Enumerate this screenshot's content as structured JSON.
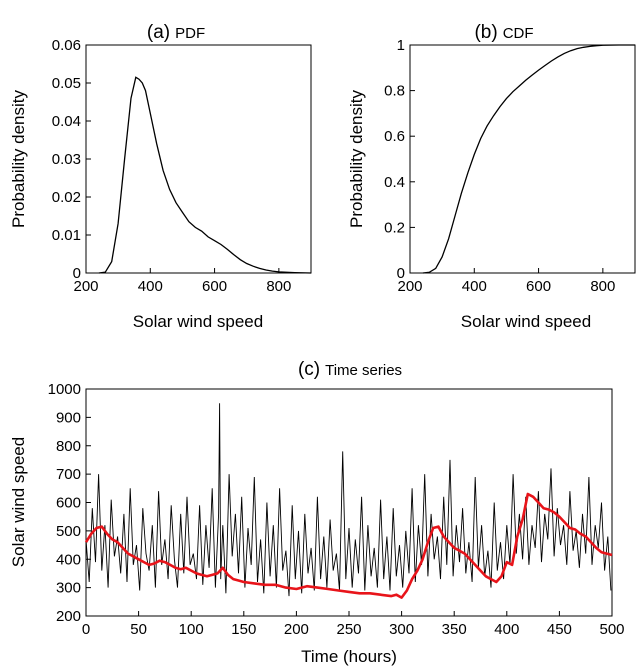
{
  "chart_data": [
    {
      "type": "line",
      "panel": "(a)",
      "title": "PDF",
      "xlabel": "Solar wind speed",
      "ylabel": "Probability density",
      "xlim": [
        200,
        900
      ],
      "ylim": [
        0,
        0.06
      ],
      "xticks": [
        "200",
        "400",
        "600",
        "800"
      ],
      "yticks": [
        "0",
        "0.01",
        "0.02",
        "0.03",
        "0.04",
        "0.05",
        "0.06"
      ],
      "grid": false,
      "series": [
        {
          "x": [
            240,
            260,
            280,
            300,
            320,
            340,
            355,
            365,
            375,
            385,
            400,
            420,
            440,
            460,
            480,
            500,
            520,
            540,
            560,
            580,
            600,
            620,
            640,
            660,
            680,
            700,
            720,
            740,
            760,
            780,
            800,
            850,
            900
          ],
          "y": [
            0,
            0.0002,
            0.003,
            0.013,
            0.03,
            0.046,
            0.0515,
            0.051,
            0.05,
            0.048,
            0.042,
            0.034,
            0.027,
            0.022,
            0.0185,
            0.016,
            0.0135,
            0.012,
            0.011,
            0.0095,
            0.0085,
            0.0075,
            0.0062,
            0.0048,
            0.0035,
            0.0025,
            0.0018,
            0.0012,
            0.0008,
            0.0005,
            0.0003,
            0.0001,
            0
          ]
        }
      ]
    },
    {
      "type": "line",
      "panel": "(b)",
      "title": "CDF",
      "xlabel": "Solar wind speed",
      "ylabel": "Probability density",
      "xlim": [
        200,
        900
      ],
      "ylim": [
        0,
        1
      ],
      "xticks": [
        "200",
        "400",
        "600",
        "800"
      ],
      "yticks": [
        "0",
        "0.2",
        "0.4",
        "0.6",
        "0.8",
        "1"
      ],
      "grid": false,
      "series": [
        {
          "x": [
            240,
            260,
            280,
            300,
            320,
            340,
            360,
            380,
            400,
            420,
            440,
            460,
            480,
            500,
            520,
            540,
            560,
            580,
            600,
            620,
            640,
            660,
            680,
            700,
            720,
            740,
            760,
            780,
            800,
            850,
            900
          ],
          "y": [
            0,
            0.003,
            0.02,
            0.07,
            0.15,
            0.25,
            0.35,
            0.44,
            0.52,
            0.59,
            0.645,
            0.69,
            0.73,
            0.765,
            0.795,
            0.82,
            0.845,
            0.868,
            0.89,
            0.91,
            0.93,
            0.948,
            0.963,
            0.975,
            0.984,
            0.99,
            0.994,
            0.997,
            0.999,
            1.0,
            1.0
          ]
        }
      ]
    },
    {
      "type": "line",
      "panel": "(c)",
      "title": "Time series",
      "xlabel": "Time (hours)",
      "ylabel": "Solar wind speed",
      "xlim": [
        0,
        500
      ],
      "ylim": [
        200,
        1000
      ],
      "xticks": [
        "0",
        "50",
        "100",
        "150",
        "200",
        "250",
        "300",
        "350",
        "400",
        "450",
        "500"
      ],
      "yticks": [
        "200",
        "300",
        "400",
        "500",
        "600",
        "700",
        "800",
        "900",
        "1000"
      ],
      "grid": false,
      "series": [
        {
          "color": "#000000",
          "x": [
            0,
            3,
            6,
            9,
            12,
            15,
            18,
            21,
            24,
            27,
            30,
            33,
            36,
            39,
            42,
            45,
            48,
            51,
            54,
            57,
            60,
            63,
            66,
            69,
            72,
            75,
            78,
            81,
            84,
            87,
            90,
            93,
            96,
            99,
            102,
            105,
            108,
            111,
            114,
            117,
            120,
            123,
            126,
            127,
            128,
            130,
            133,
            136,
            139,
            142,
            145,
            148,
            151,
            154,
            157,
            160,
            163,
            166,
            169,
            172,
            175,
            178,
            181,
            184,
            187,
            190,
            193,
            196,
            199,
            202,
            205,
            208,
            211,
            214,
            217,
            220,
            223,
            226,
            229,
            232,
            235,
            238,
            241,
            244,
            247,
            250,
            253,
            256,
            259,
            262,
            265,
            268,
            271,
            274,
            277,
            280,
            283,
            286,
            289,
            292,
            295,
            298,
            301,
            304,
            307,
            310,
            313,
            316,
            319,
            322,
            325,
            328,
            331,
            334,
            337,
            340,
            343,
            346,
            349,
            352,
            355,
            358,
            361,
            364,
            367,
            370,
            373,
            376,
            379,
            382,
            385,
            388,
            391,
            394,
            397,
            400,
            403,
            406,
            409,
            412,
            415,
            418,
            421,
            424,
            427,
            430,
            433,
            436,
            439,
            442,
            445,
            448,
            451,
            454,
            457,
            460,
            463,
            466,
            469,
            472,
            475,
            478,
            481,
            484,
            487,
            490,
            493,
            496,
            499
          ],
          "y": [
            470,
            320,
            580,
            390,
            700,
            360,
            520,
            300,
            610,
            410,
            480,
            350,
            560,
            320,
            650,
            380,
            450,
            290,
            580,
            420,
            360,
            520,
            300,
            640,
            380,
            470,
            330,
            590,
            400,
            300,
            560,
            350,
            620,
            380,
            420,
            330,
            590,
            310,
            520,
            370,
            650,
            300,
            560,
            950,
            330,
            520,
            280,
            700,
            410,
            560,
            350,
            620,
            300,
            510,
            380,
            690,
            320,
            470,
            280,
            600,
            340,
            520,
            300,
            650,
            360,
            430,
            270,
            590,
            330,
            500,
            280,
            560,
            350,
            440,
            290,
            620,
            330,
            480,
            300,
            540,
            360,
            420,
            290,
            780,
            330,
            510,
            300,
            470,
            350,
            620,
            290,
            520,
            340,
            440,
            300,
            610,
            330,
            480,
            290,
            580,
            340,
            450,
            300,
            500,
            350,
            650,
            320,
            520,
            380,
            700,
            340,
            560,
            400,
            480,
            330,
            620,
            380,
            750,
            340,
            520,
            390,
            580,
            350,
            460,
            320,
            690,
            370,
            520,
            340,
            430,
            300,
            600,
            360,
            460,
            330,
            520,
            380,
            700,
            420,
            560,
            400,
            620,
            380,
            520,
            440,
            640,
            390,
            560,
            470,
            720,
            410,
            580,
            450,
            520,
            380,
            640,
            430,
            500,
            370,
            560,
            420,
            690,
            380,
            520,
            440,
            600,
            360,
            480,
            290
          ]
        },
        {
          "color": "#e8141a",
          "x": [
            0,
            5,
            10,
            15,
            20,
            25,
            30,
            35,
            40,
            45,
            50,
            55,
            60,
            65,
            70,
            75,
            80,
            85,
            90,
            95,
            100,
            105,
            110,
            115,
            120,
            125,
            130,
            135,
            140,
            145,
            150,
            160,
            170,
            180,
            190,
            200,
            210,
            220,
            230,
            240,
            250,
            260,
            270,
            280,
            290,
            295,
            300,
            305,
            310,
            315,
            320,
            325,
            330,
            335,
            340,
            345,
            350,
            355,
            360,
            365,
            370,
            375,
            380,
            385,
            390,
            395,
            400,
            405,
            410,
            415,
            420,
            425,
            430,
            435,
            440,
            445,
            450,
            455,
            460,
            465,
            470,
            475,
            480,
            485,
            490,
            495,
            500
          ],
          "y": [
            460,
            490,
            510,
            515,
            490,
            470,
            460,
            440,
            420,
            410,
            400,
            390,
            380,
            385,
            395,
            390,
            380,
            370,
            365,
            370,
            360,
            350,
            345,
            340,
            345,
            350,
            370,
            345,
            330,
            325,
            320,
            315,
            310,
            310,
            300,
            295,
            305,
            300,
            295,
            290,
            285,
            280,
            280,
            275,
            270,
            275,
            265,
            290,
            330,
            360,
            400,
            460,
            510,
            515,
            480,
            460,
            440,
            430,
            420,
            400,
            380,
            360,
            340,
            330,
            320,
            340,
            390,
            380,
            480,
            540,
            630,
            620,
            600,
            580,
            575,
            565,
            550,
            530,
            510,
            505,
            490,
            480,
            460,
            440,
            425,
            420,
            415
          ]
        }
      ]
    }
  ]
}
